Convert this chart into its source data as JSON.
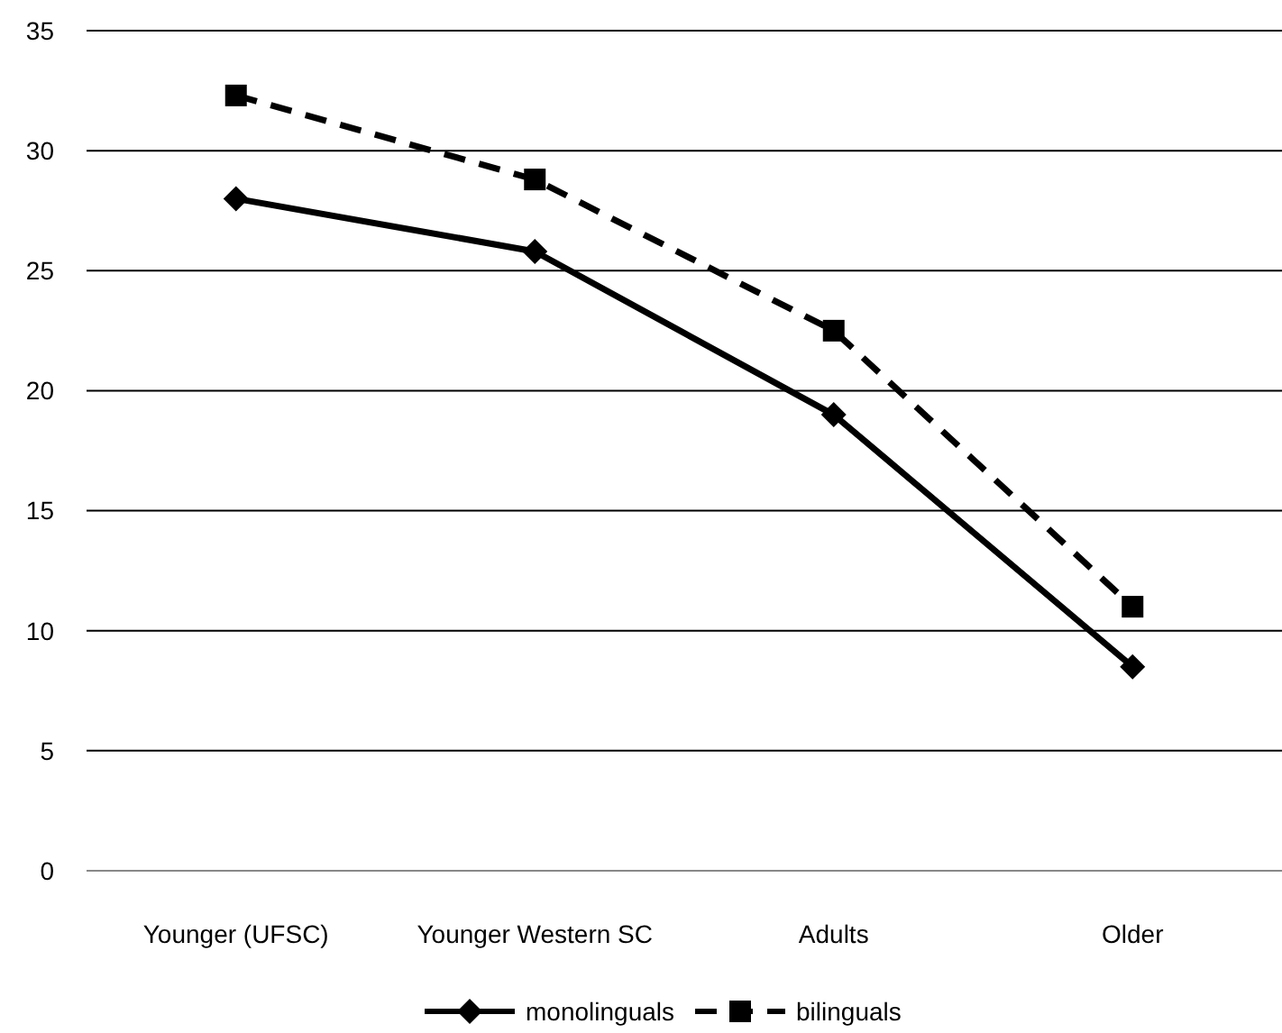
{
  "chart_data": {
    "type": "line",
    "categories": [
      "Younger (UFSC)",
      "Younger Western SC",
      "Adults",
      "Older"
    ],
    "series": [
      {
        "name": "monolinguals",
        "color": "#000000",
        "values": [
          28.0,
          25.8,
          19.0,
          8.5
        ],
        "marker": "diamond",
        "line_style": "solid"
      },
      {
        "name": "bilinguals",
        "color": "#000000",
        "values": [
          32.3,
          28.8,
          22.5,
          11.0
        ],
        "marker": "square",
        "line_style": "dashed"
      }
    ],
    "ylim": [
      0,
      35
    ],
    "yticks": [
      0,
      5,
      10,
      15,
      20,
      25,
      30,
      35
    ],
    "grid": "y",
    "legend": "bottom"
  }
}
